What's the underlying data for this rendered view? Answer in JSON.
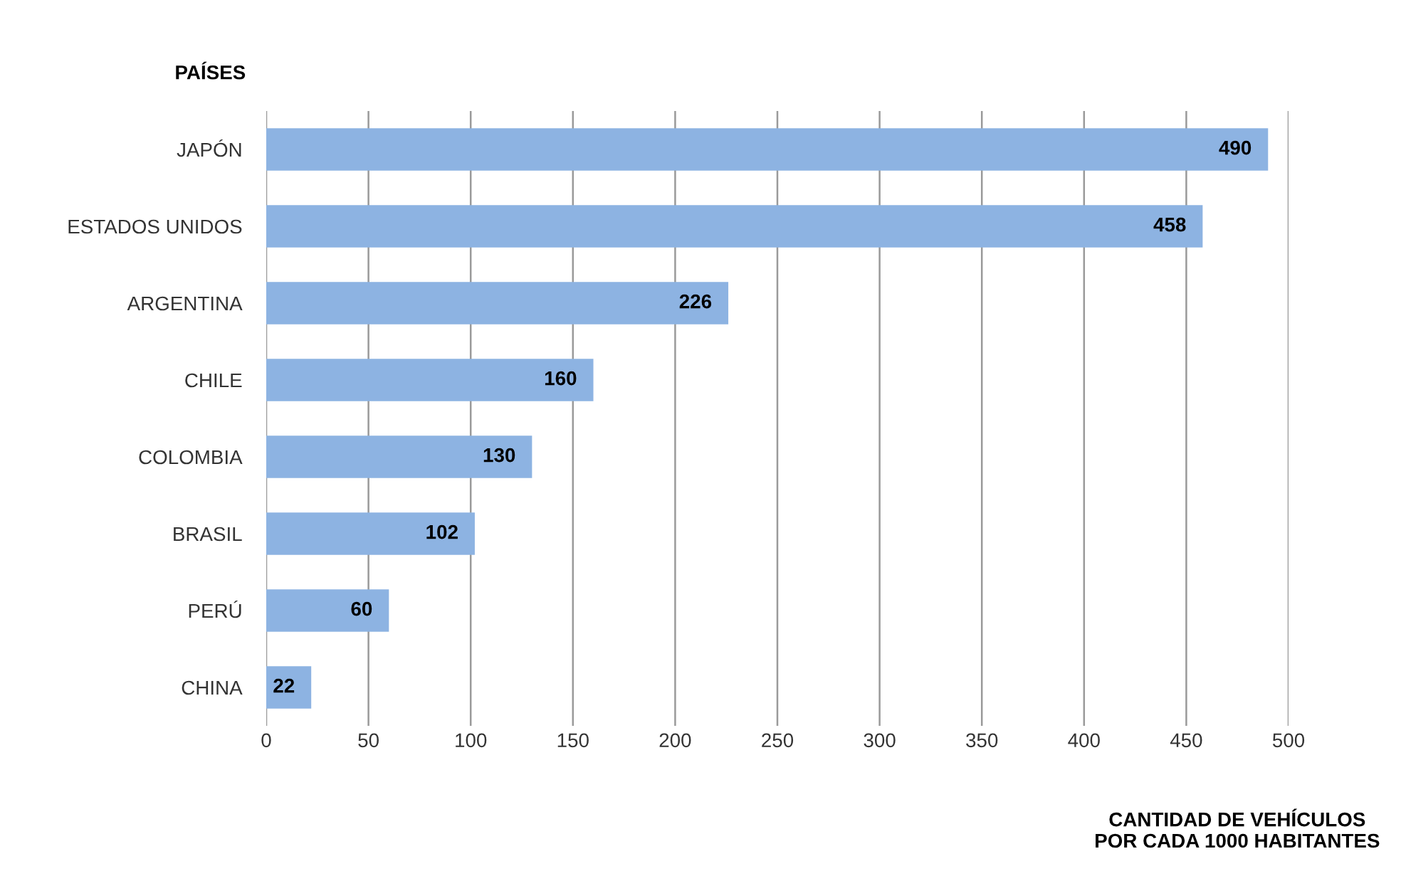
{
  "chart_data": {
    "type": "bar",
    "orientation": "horizontal",
    "ylabel": "PAÍSES",
    "xlabel": "CANTIDAD DE VEHÍCULOS\nPOR CADA 1000 HABITANTES",
    "categories": [
      "JAPÓN",
      "ESTADOS UNIDOS",
      "ARGENTINA",
      "CHILE",
      "COLOMBIA",
      "BRASIL",
      "PERÚ",
      "CHINA"
    ],
    "values": [
      490,
      458,
      226,
      160,
      130,
      102,
      60,
      22
    ],
    "color": "#8db3e2",
    "xlim": [
      0,
      500
    ],
    "xticks": [
      0,
      50,
      100,
      150,
      200,
      250,
      300,
      350,
      400,
      450,
      500
    ],
    "grid": "x",
    "data_labels": true
  }
}
